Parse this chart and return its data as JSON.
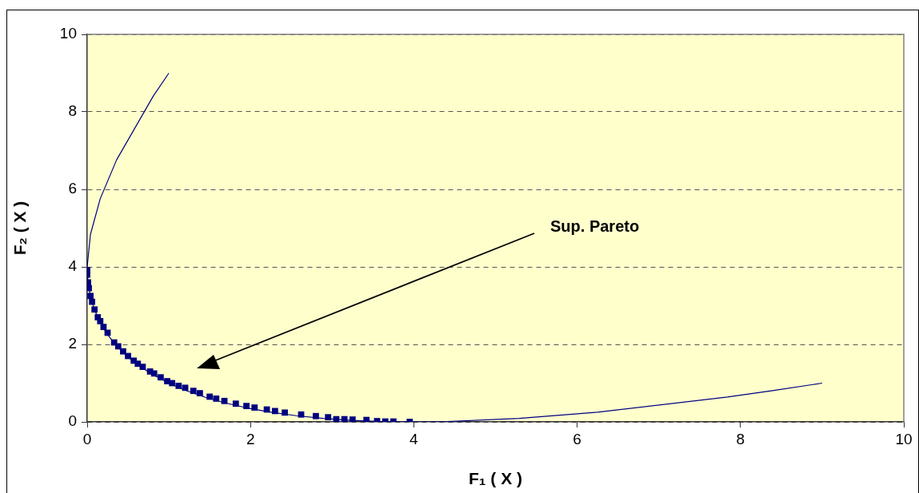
{
  "chart_data": {
    "type": "scatter",
    "xlabel": "F₁ ( X )",
    "ylabel": "F₂ ( X )",
    "xlim": [
      0,
      10
    ],
    "xticks": [
      0,
      2,
      4,
      6,
      8,
      10
    ],
    "ylim": [
      0,
      10
    ],
    "yticks": [
      0,
      2,
      4,
      6,
      8,
      10
    ],
    "grid": "y",
    "legend": false,
    "annotations": [
      "Sup. Pareto"
    ],
    "series": [
      {
        "type": "line",
        "color": "#000080",
        "marker": "none",
        "line_style": "solid",
        "x": [
          1,
          0.81,
          0.36,
          0.16,
          0.04,
          0,
          0.01,
          0.04,
          0.09,
          0.16,
          0.25,
          0.36,
          0.49,
          0.64,
          0.81,
          1,
          1.21,
          1.44,
          1.69,
          1.96,
          2.25,
          2.56,
          2.89,
          3.24,
          3.61,
          4,
          4.41,
          5.29,
          6.25,
          7.84,
          8.41,
          9
        ],
        "values": [
          9,
          8.41,
          6.76,
          5.76,
          4.84,
          4,
          3.61,
          3.24,
          2.89,
          2.56,
          2.25,
          1.96,
          1.69,
          1.44,
          1.21,
          1,
          0.81,
          0.64,
          0.49,
          0.36,
          0.25,
          0.16,
          0.09,
          0.04,
          0.01,
          0,
          0.01,
          0.09,
          0.25,
          0.64,
          0.81,
          1
        ]
      },
      {
        "color": "#000080",
        "marker": "square",
        "x": [
          0,
          0,
          0.01,
          0.02,
          0.04,
          0.06,
          0.09,
          0.13,
          0.16,
          0.2,
          0.25,
          0.33,
          0.38,
          0.44,
          0.5,
          0.57,
          0.62,
          0.68,
          0.77,
          0.82,
          0.9,
          0.98,
          1.04,
          1.12,
          1.2,
          1.3,
          1.38,
          1.5,
          1.58,
          1.68,
          1.82,
          1.95,
          2.05,
          2.2,
          2.3,
          2.42,
          2.62,
          2.8,
          2.95,
          3.05,
          3.15,
          3.25,
          3.42,
          3.55,
          3.65,
          3.75,
          3.95
        ],
        "values": [
          3.92,
          3.8,
          3.6,
          3.45,
          3.25,
          3.1,
          2.9,
          2.7,
          2.6,
          2.45,
          2.3,
          2.05,
          1.95,
          1.82,
          1.7,
          1.58,
          1.5,
          1.42,
          1.3,
          1.25,
          1.15,
          1.05,
          1,
          0.93,
          0.88,
          0.8,
          0.74,
          0.65,
          0.6,
          0.54,
          0.47,
          0.41,
          0.37,
          0.32,
          0.28,
          0.24,
          0.19,
          0.15,
          0.12,
          0.07,
          0.07,
          0.06,
          0.05,
          0.02,
          0.01,
          0.01,
          0
        ]
      }
    ]
  }
}
